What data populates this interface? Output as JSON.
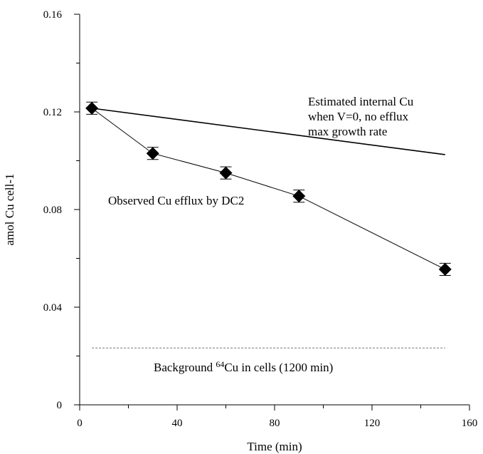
{
  "chart_data": {
    "type": "line",
    "title": "",
    "xlabel": "Time (min)",
    "ylabel": "amol Cu cell-1",
    "xlim": [
      0,
      160
    ],
    "ylim": [
      0,
      0.16
    ],
    "x_ticks": [
      "0",
      "40",
      "80",
      "120",
      "160"
    ],
    "y_ticks": [
      "0",
      "0.04",
      "0.08",
      "0.12",
      "0.16"
    ],
    "grid": false,
    "legend": "none",
    "series": [
      {
        "name": "Observed Cu efflux by DC2",
        "marker": "diamond",
        "error_bars": true,
        "x": [
          5,
          30,
          60,
          90,
          150
        ],
        "y": [
          0.1215,
          0.103,
          0.095,
          0.0855,
          0.0555
        ],
        "yerr": [
          0.0025,
          0.0025,
          0.0025,
          0.0025,
          0.0025
        ]
      },
      {
        "name": "Estimated internal Cu when V=0, no efflux max growth rate",
        "marker": "none",
        "x": [
          5,
          150
        ],
        "y": [
          0.1215,
          0.1025
        ]
      },
      {
        "name": "Background 64Cu in cells (1200 min)",
        "marker": "none",
        "style": "dashed",
        "x": [
          5,
          150
        ],
        "y": [
          0.0233,
          0.0233
        ]
      }
    ],
    "annotations": {
      "estimated_lines": [
        "Estimated internal Cu",
        "when V=0, no efflux",
        "max growth rate"
      ],
      "observed": "Observed Cu efflux by DC2",
      "background_pre": "Background ",
      "background_sup": "64",
      "background_post": "Cu in cells (1200 min)"
    },
    "colors": {
      "line": "#000000",
      "dashed": "#777777"
    }
  }
}
